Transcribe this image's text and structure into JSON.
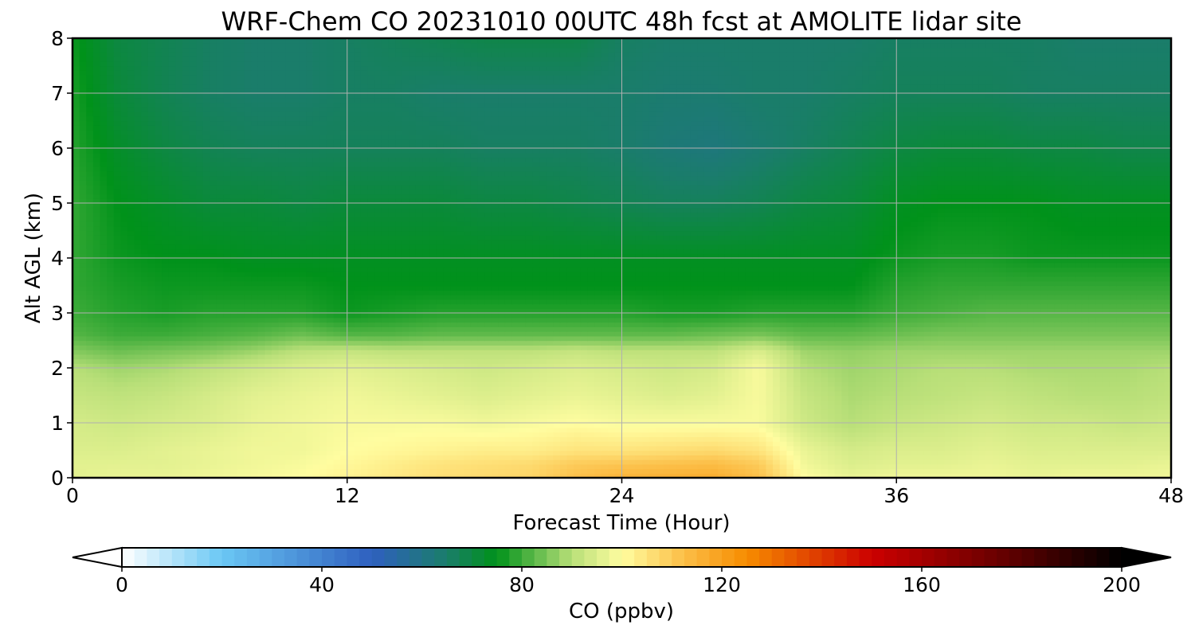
{
  "chart_data": {
    "type": "heatmap",
    "title": "WRF-Chem CO  20231010 00UTC 48h fcst at AMOLITE lidar site",
    "xlabel": "Forecast Time (Hour)",
    "ylabel": "Alt AGL (km)",
    "xlim": [
      0,
      48
    ],
    "ylim": [
      0,
      8
    ],
    "x_ticks": [
      "0",
      "12",
      "24",
      "36",
      "48"
    ],
    "y_ticks": [
      "0",
      "1",
      "2",
      "3",
      "4",
      "5",
      "6",
      "7",
      "8"
    ],
    "grid": true,
    "colorbar": {
      "label": "CO  (ppbv)",
      "range": [
        0,
        200
      ],
      "ticks": [
        "0",
        "40",
        "80",
        "120",
        "160",
        "200"
      ],
      "extend": "both",
      "stops": [
        {
          "v": 0,
          "color": "#ffffff"
        },
        {
          "v": 20,
          "color": "#6ac7f4"
        },
        {
          "v": 50,
          "color": "#2f60bf"
        },
        {
          "v": 65,
          "color": "#1a7d6a"
        },
        {
          "v": 75,
          "color": "#00921a"
        },
        {
          "v": 90,
          "color": "#b8df78"
        },
        {
          "v": 100,
          "color": "#fffda0"
        },
        {
          "v": 112,
          "color": "#fcc04a"
        },
        {
          "v": 125,
          "color": "#f78c00"
        },
        {
          "v": 150,
          "color": "#cc0000"
        },
        {
          "v": 175,
          "color": "#6a0000"
        },
        {
          "v": 200,
          "color": "#000000"
        }
      ]
    },
    "field": {
      "units": "ppbv",
      "x_hours": [
        0,
        2,
        4,
        6,
        8,
        10,
        12,
        14,
        16,
        18,
        20,
        22,
        24,
        26,
        28,
        30,
        32,
        34,
        36,
        38,
        40,
        42,
        44,
        46,
        48
      ],
      "z_km": [
        0,
        0.25,
        0.5,
        1,
        1.5,
        2,
        2.3,
        2.6,
        3,
        3.5,
        4,
        5,
        6,
        7,
        8
      ],
      "co_ppbv": [
        [
          96,
          97,
          97,
          98,
          99,
          100,
          102,
          104,
          106,
          107,
          108,
          112,
          115,
          116,
          117,
          112,
          100,
          97,
          98,
          98,
          98,
          97,
          98,
          98,
          98
        ],
        [
          96,
          96,
          96,
          97,
          98,
          99,
          101,
          103,
          105,
          106,
          107,
          110,
          111,
          112,
          113,
          110,
          98,
          95,
          96,
          96,
          97,
          96,
          96,
          96,
          97
        ],
        [
          95,
          95,
          96,
          97,
          98,
          98,
          100,
          101,
          102,
          103,
          103,
          105,
          105,
          106,
          107,
          105,
          97,
          94,
          95,
          95,
          96,
          95,
          95,
          95,
          95
        ],
        [
          94,
          93,
          94,
          95,
          97,
          98,
          99,
          99,
          99,
          98,
          99,
          100,
          99,
          99,
          99,
          99,
          93,
          90,
          92,
          93,
          94,
          93,
          93,
          92,
          93
        ],
        [
          92,
          91,
          92,
          94,
          96,
          97,
          98,
          97,
          96,
          95,
          96,
          97,
          96,
          95,
          96,
          99,
          92,
          89,
          90,
          91,
          92,
          91,
          90,
          90,
          91
        ],
        [
          90,
          88,
          89,
          91,
          93,
          95,
          96,
          95,
          94,
          93,
          94,
          95,
          94,
          93,
          94,
          99,
          90,
          88,
          89,
          90,
          90,
          89,
          89,
          89,
          90
        ],
        [
          86,
          84,
          85,
          86,
          88,
          91,
          92,
          91,
          91,
          91,
          91,
          92,
          91,
          91,
          91,
          95,
          88,
          87,
          88,
          88,
          88,
          88,
          88,
          88,
          88
        ],
        [
          82,
          80,
          80,
          81,
          82,
          84,
          82,
          82,
          83,
          83,
          83,
          83,
          83,
          83,
          84,
          85,
          83,
          83,
          84,
          85,
          85,
          85,
          85,
          85,
          85
        ],
        [
          80,
          78,
          77,
          78,
          78,
          78,
          76,
          77,
          78,
          78,
          78,
          78,
          78,
          77,
          77,
          78,
          78,
          78,
          80,
          81,
          82,
          82,
          82,
          82,
          82
        ],
        [
          79,
          77,
          76,
          76,
          76,
          76,
          75,
          75,
          75,
          75,
          75,
          75,
          75,
          75,
          75,
          75,
          75,
          75,
          78,
          79,
          79,
          79,
          79,
          79,
          79
        ],
        [
          79,
          76,
          75,
          75,
          74,
          74,
          74,
          74,
          74,
          74,
          74,
          74,
          74,
          74,
          74,
          74,
          74,
          74,
          76,
          77,
          77,
          76,
          76,
          76,
          76
        ],
        [
          79,
          75,
          73,
          71,
          71,
          70,
          71,
          71,
          71,
          70,
          70,
          69,
          68,
          67,
          67,
          68,
          70,
          71,
          74,
          75,
          75,
          75,
          74,
          74,
          74
        ],
        [
          78,
          73,
          70,
          68,
          67,
          67,
          67,
          67,
          67,
          66,
          66,
          66,
          65,
          63,
          62,
          64,
          66,
          68,
          70,
          71,
          71,
          70,
          70,
          69,
          69
        ],
        [
          77,
          71,
          68,
          66,
          65,
          65,
          66,
          66,
          65,
          65,
          65,
          65,
          65,
          64,
          64,
          65,
          65,
          66,
          67,
          67,
          67,
          66,
          66,
          66,
          66
        ],
        [
          76,
          70,
          68,
          66,
          65,
          65,
          66,
          67,
          68,
          69,
          69,
          69,
          66,
          65,
          65,
          65,
          65,
          65,
          66,
          66,
          66,
          66,
          65,
          65,
          65
        ]
      ]
    }
  }
}
